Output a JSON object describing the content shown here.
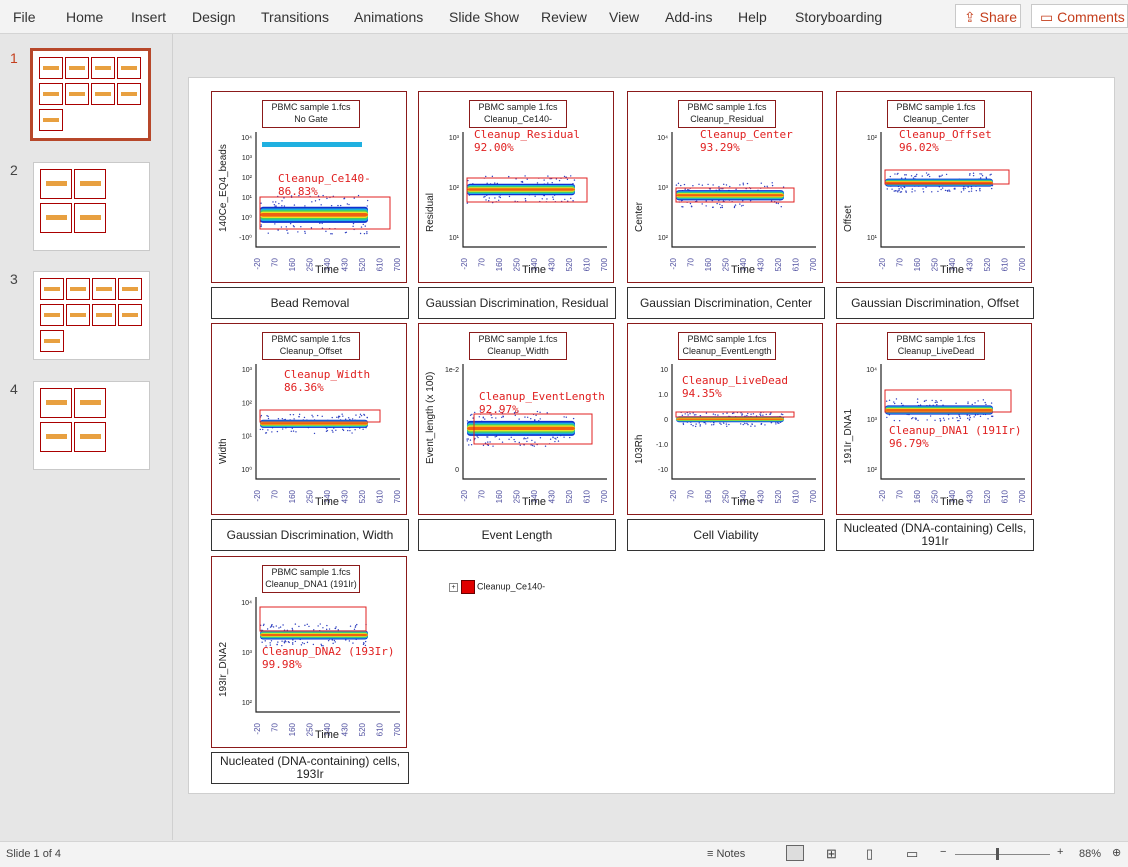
{
  "ribbon": {
    "tabs": [
      "File",
      "Home",
      "Insert",
      "Design",
      "Transitions",
      "Animations",
      "Slide Show",
      "Review",
      "View",
      "Add-ins",
      "Help",
      "Storyboarding"
    ],
    "share_label": "Share",
    "comments_label": "Comments"
  },
  "slides": [
    {
      "number": "1"
    },
    {
      "number": "2"
    },
    {
      "number": "3"
    },
    {
      "number": "4"
    }
  ],
  "plots": [
    {
      "sample": "PBMC sample 1.fcs",
      "gate_header": "No Gate",
      "gate": "Cleanup_Ce140-",
      "pct": "86.83%",
      "ylabel": "140Ce_EQ4_beads",
      "xlabel": "Time",
      "caption": "Bead Removal",
      "y_ticks": [
        "10⁴",
        "10³",
        "10²",
        "10¹",
        "10⁰",
        "-10⁰"
      ]
    },
    {
      "sample": "PBMC sample 1.fcs",
      "gate_header": "Cleanup_Ce140-",
      "gate": "Cleanup_Residual",
      "pct": "92.00%",
      "ylabel": "Residual",
      "xlabel": "Time",
      "caption": "Gaussian Discrimination, Residual",
      "y_ticks": [
        "10³",
        "10²",
        "10¹"
      ]
    },
    {
      "sample": "PBMC sample 1.fcs",
      "gate_header": "Cleanup_Residual",
      "gate": "Cleanup_Center",
      "pct": "93.29%",
      "ylabel": "Center",
      "xlabel": "Time",
      "caption": "Gaussian Discrimination, Center",
      "y_ticks": [
        "10⁴",
        "10³",
        "10²"
      ]
    },
    {
      "sample": "PBMC sample 1.fcs",
      "gate_header": "Cleanup_Center",
      "gate": "Cleanup_Offset",
      "pct": "96.02%",
      "ylabel": "Offset",
      "xlabel": "Time",
      "caption": "Gaussian Discrimination, Offset",
      "y_ticks": [
        "10²",
        "10¹"
      ]
    },
    {
      "sample": "PBMC sample 1.fcs",
      "gate_header": "Cleanup_Offset",
      "gate": "Cleanup_Width",
      "pct": "86.36%",
      "ylabel": "Width",
      "xlabel": "Time",
      "caption": "Gaussian Discrimination, Width",
      "y_ticks": [
        "10³",
        "10²",
        "10¹",
        "10⁰"
      ]
    },
    {
      "sample": "PBMC sample 1.fcs",
      "gate_header": "Cleanup_Width",
      "gate": "Cleanup_EventLength",
      "pct": "92.97%",
      "ylabel": "Event_length (x 100)",
      "xlabel": "Time",
      "caption": "Event Length",
      "y_ticks": [
        "1e-2",
        "0"
      ]
    },
    {
      "sample": "PBMC sample 1.fcs",
      "gate_header": "Cleanup_EventLength",
      "gate": "Cleanup_LiveDead",
      "pct": "94.35%",
      "ylabel": "103Rh",
      "xlabel": "Time",
      "caption": "Cell Viability",
      "y_ticks": [
        "10",
        "1.0",
        "0",
        "-1.0",
        "-10"
      ]
    },
    {
      "sample": "PBMC sample 1.fcs",
      "gate_header": "Cleanup_LiveDead",
      "gate": "Cleanup_DNA1 (191Ir)",
      "pct": "96.79%",
      "ylabel": "191Ir_DNA1",
      "xlabel": "Time",
      "caption": "Nucleated (DNA-containing) Cells, 191Ir",
      "y_ticks": [
        "10⁴",
        "10³",
        "10²"
      ]
    },
    {
      "sample": "PBMC sample 1.fcs",
      "gate_header": "Cleanup_DNA1 (191Ir)",
      "gate": "Cleanup_DNA2 (193Ir)",
      "pct": "99.98%",
      "ylabel": "193Ir_DNA2",
      "xlabel": "Time",
      "caption": "Nucleated (DNA-containing) cells, 193Ir",
      "y_ticks": [
        "10⁴",
        "10³",
        "10²"
      ]
    }
  ],
  "x_ticks": [
    "-20",
    "70",
    "160",
    "250",
    "340",
    "430",
    "520",
    "610",
    "700"
  ],
  "legend": {
    "label": "Cleanup_Ce140-",
    "color": "#e00000"
  },
  "status": {
    "slide_info": "Slide 1 of 4",
    "notes_label": "Notes",
    "zoom": "88%"
  }
}
